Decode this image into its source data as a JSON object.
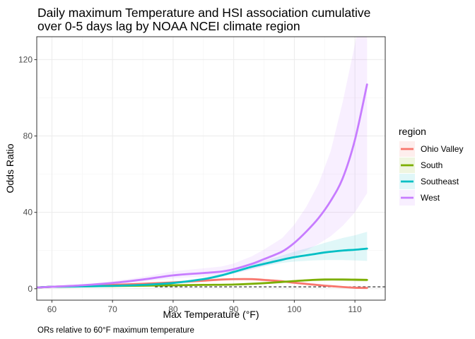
{
  "chart_data": {
    "type": "line",
    "title_lines": [
      "Daily maximum Temperature and HSI association cumulative",
      "over 0-5 days lag by NOAA NCEI climate region"
    ],
    "xlabel": "Max Temperature (°F)",
    "ylabel": "Odds Ratio",
    "caption": "ORs relative to 60°F maximum temperature",
    "xlim": [
      57.5,
      115
    ],
    "ylim": [
      -6,
      132
    ],
    "xticks": [
      60,
      70,
      80,
      90,
      100,
      110
    ],
    "yticks": [
      0,
      40,
      80,
      120
    ],
    "grid": true,
    "reference_line": {
      "y": 1,
      "style": "dashed",
      "x_start": 77,
      "x_end": 115
    },
    "legend": {
      "title": "region",
      "position": "right"
    },
    "series": [
      {
        "name": "Ohio Valley",
        "color": "#F8766D",
        "x": [
          57.5,
          60,
          65,
          70,
          75,
          80,
          85,
          88,
          90,
          93,
          95,
          98,
          100,
          103,
          105,
          108,
          110,
          112
        ],
        "y": [
          0.6,
          1.0,
          1.5,
          2.0,
          2.6,
          3.3,
          4.2,
          4.8,
          5.0,
          5.0,
          4.6,
          3.9,
          3.1,
          2.2,
          1.6,
          0.9,
          0.5,
          0.4
        ],
        "ci_lower": [
          0.5,
          1.0,
          1.3,
          1.8,
          2.3,
          2.9,
          3.7,
          4.2,
          4.4,
          4.3,
          3.9,
          3.2,
          2.4,
          1.6,
          1.1,
          0.5,
          0.2,
          0.1
        ],
        "ci_upper": [
          0.7,
          1.0,
          1.7,
          2.2,
          2.9,
          3.7,
          4.7,
          5.4,
          5.6,
          5.7,
          5.3,
          4.6,
          3.8,
          2.9,
          2.2,
          1.4,
          0.9,
          0.8
        ]
      },
      {
        "name": "South",
        "color": "#7CAE00",
        "x": [
          57.5,
          60,
          65,
          70,
          75,
          80,
          85,
          90,
          95,
          100,
          103,
          105,
          108,
          110,
          112
        ],
        "y": [
          0.6,
          1.0,
          1.2,
          1.4,
          1.6,
          1.8,
          2.0,
          2.2,
          2.9,
          4.0,
          4.6,
          4.8,
          4.8,
          4.7,
          4.6
        ],
        "ci_lower": [
          0.5,
          1.0,
          1.1,
          1.2,
          1.4,
          1.5,
          1.7,
          1.9,
          2.5,
          3.5,
          4.0,
          4.1,
          4.1,
          3.9,
          3.7
        ],
        "ci_upper": [
          0.7,
          1.0,
          1.3,
          1.6,
          1.8,
          2.1,
          2.3,
          2.6,
          3.3,
          4.5,
          5.2,
          5.5,
          5.5,
          5.5,
          5.5
        ]
      },
      {
        "name": "Southeast",
        "color": "#00BFC4",
        "x": [
          57.5,
          60,
          65,
          70,
          75,
          80,
          85,
          88,
          90,
          93,
          95,
          98,
          100,
          103,
          105,
          108,
          110,
          112
        ],
        "y": [
          0.6,
          1.0,
          1.2,
          1.5,
          2.0,
          3.0,
          5.0,
          7.0,
          8.8,
          11.5,
          13.0,
          15.2,
          16.5,
          18.0,
          19.0,
          20.0,
          20.4,
          21.0
        ],
        "ci_lower": [
          0.5,
          1.0,
          1.1,
          1.3,
          1.7,
          2.6,
          4.4,
          6.2,
          7.9,
          10.4,
          11.8,
          13.5,
          14.2,
          14.8,
          15.0,
          15.0,
          14.8,
          14.6
        ],
        "ci_upper": [
          0.7,
          1.0,
          1.3,
          1.7,
          2.3,
          3.5,
          5.7,
          7.9,
          9.8,
          12.8,
          14.6,
          17.4,
          19.4,
          22.0,
          24.0,
          26.6,
          28.0,
          29.8
        ]
      },
      {
        "name": "West",
        "color": "#C77CFF",
        "x": [
          57.5,
          60,
          65,
          70,
          75,
          80,
          85,
          88,
          90,
          93,
          95,
          98,
          100,
          102,
          104,
          106,
          108,
          110,
          112
        ],
        "y": [
          0.6,
          1.0,
          1.8,
          3.0,
          4.8,
          7.0,
          8.2,
          9.0,
          10.2,
          13.0,
          15.5,
          19.5,
          24.0,
          30.0,
          37.0,
          46.0,
          58.0,
          78.0,
          107.0
        ],
        "ci_lower": [
          0.5,
          1.0,
          1.4,
          2.3,
          3.7,
          5.4,
          6.3,
          7.0,
          7.9,
          10.0,
          11.8,
          14.5,
          17.0,
          20.0,
          23.5,
          27.5,
          33.0,
          40.0,
          50.0
        ],
        "ci_upper": [
          0.7,
          1.0,
          2.3,
          3.9,
          6.2,
          9.1,
          10.7,
          11.6,
          13.2,
          17.0,
          20.5,
          26.5,
          33.5,
          43.0,
          55.0,
          72.0,
          98.0,
          128.0,
          160.0
        ]
      }
    ]
  }
}
